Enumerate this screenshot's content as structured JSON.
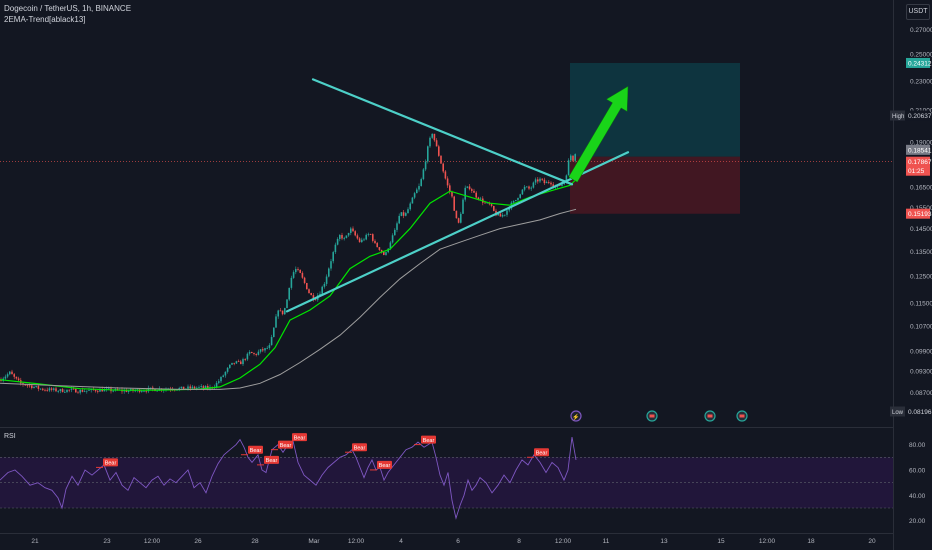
{
  "header": {
    "symbol_line": "Dogecoin / TetherUS, 1h, BINANCE",
    "indicator_line": "2EMA-Trend[ablack13]"
  },
  "currency_button": "USDT",
  "rsi_label": "RSI",
  "colors": {
    "background": "#131722",
    "up": "#26a69a",
    "down": "#ef5350",
    "ema_fast": "#00e600",
    "ema_slow": "#9e9e9e",
    "trendline": "#4dd0c8",
    "arrow": "#19d419",
    "target_zone": "#0e3a44",
    "stop_zone": "#4a1722",
    "rsi_line": "#7e57c2",
    "rsi_band": "#21163a",
    "bear_tag": "#e53935"
  },
  "chart_data": [
    {
      "type": "candlestick",
      "title": "Dogecoin / TetherUS, 1h, BINANCE",
      "price_axis": {
        "scale": "log",
        "ticks": [
          "0.27000",
          "0.25000",
          "0.23000",
          "0.21000",
          "0.19000",
          "0.16500",
          "0.15500",
          "0.14500",
          "0.13500",
          "0.12500",
          "0.11500",
          "0.10700",
          "0.09900",
          "0.09300",
          "0.08700"
        ]
      },
      "time_axis": {
        "ticks": [
          "21",
          "23",
          "12:00",
          "26",
          "28",
          "Mar",
          "12:00",
          "4",
          "6",
          "8",
          "12:00",
          "11",
          "13",
          "15",
          "12:00",
          "18",
          "20"
        ]
      },
      "price_labels": [
        {
          "name": "target",
          "value": "0.24312"
        },
        {
          "name": "High",
          "value": "0.20637"
        },
        {
          "name": "last",
          "value": "0.18541"
        },
        {
          "name": "current",
          "value": "0.17867"
        },
        {
          "name": "countdown",
          "value": "01:25"
        },
        {
          "name": "stop",
          "value": "0.15193"
        },
        {
          "name": "Low",
          "value": "0.08196"
        }
      ],
      "close_path": [
        [
          0,
          0.0905
        ],
        [
          5,
          0.0915
        ],
        [
          10,
          0.0925
        ],
        [
          14,
          0.0912
        ],
        [
          20,
          0.0895
        ],
        [
          30,
          0.0888
        ],
        [
          40,
          0.088
        ],
        [
          50,
          0.0877
        ],
        [
          60,
          0.0875
        ],
        [
          70,
          0.0876
        ],
        [
          80,
          0.0874
        ],
        [
          90,
          0.0875
        ],
        [
          100,
          0.0877
        ],
        [
          110,
          0.0876
        ],
        [
          120,
          0.0875
        ],
        [
          130,
          0.0874
        ],
        [
          140,
          0.0876
        ],
        [
          150,
          0.0878
        ],
        [
          160,
          0.0879
        ],
        [
          170,
          0.0881
        ],
        [
          180,
          0.088
        ],
        [
          190,
          0.0882
        ],
        [
          200,
          0.0883
        ],
        [
          210,
          0.0882
        ],
        [
          215,
          0.089
        ],
        [
          220,
          0.0905
        ],
        [
          225,
          0.0925
        ],
        [
          230,
          0.0945
        ],
        [
          235,
          0.0955
        ],
        [
          240,
          0.0952
        ],
        [
          245,
          0.0968
        ],
        [
          250,
          0.0985
        ],
        [
          255,
          0.0978
        ],
        [
          260,
          0.099
        ],
        [
          265,
          0.0995
        ],
        [
          270,
          0.1005
        ],
        [
          275,
          0.108
        ],
        [
          278,
          0.113
        ],
        [
          282,
          0.111
        ],
        [
          286,
          0.114
        ],
        [
          290,
          0.123
        ],
        [
          295,
          0.128
        ],
        [
          300,
          0.126
        ],
        [
          305,
          0.122
        ],
        [
          310,
          0.118
        ],
        [
          315,
          0.1165
        ],
        [
          320,
          0.119
        ],
        [
          325,
          0.123
        ],
        [
          330,
          0.13
        ],
        [
          335,
          0.137
        ],
        [
          340,
          0.142
        ],
        [
          345,
          0.14
        ],
        [
          350,
          0.145
        ],
        [
          355,
          0.142
        ],
        [
          360,
          0.139
        ],
        [
          365,
          0.141
        ],
        [
          370,
          0.143
        ],
        [
          375,
          0.138
        ],
        [
          380,
          0.136
        ],
        [
          385,
          0.133
        ],
        [
          390,
          0.139
        ],
        [
          395,
          0.144
        ],
        [
          400,
          0.152
        ],
        [
          405,
          0.151
        ],
        [
          410,
          0.156
        ],
        [
          415,
          0.162
        ],
        [
          420,
          0.166
        ],
        [
          425,
          0.178
        ],
        [
          428,
          0.187
        ],
        [
          432,
          0.196
        ],
        [
          436,
          0.188
        ],
        [
          440,
          0.18
        ],
        [
          444,
          0.172
        ],
        [
          448,
          0.165
        ],
        [
          452,
          0.16
        ],
        [
          455,
          0.152
        ],
        [
          458,
          0.146
        ],
        [
          461,
          0.153
        ],
        [
          465,
          0.164
        ],
        [
          470,
          0.165
        ],
        [
          475,
          0.161
        ],
        [
          480,
          0.159
        ],
        [
          485,
          0.157
        ],
        [
          490,
          0.156
        ],
        [
          495,
          0.152
        ],
        [
          500,
          0.1505
        ],
        [
          505,
          0.152
        ],
        [
          510,
          0.156
        ],
        [
          515,
          0.158
        ],
        [
          520,
          0.162
        ],
        [
          525,
          0.165
        ],
        [
          530,
          0.164
        ],
        [
          535,
          0.168
        ],
        [
          540,
          0.169
        ],
        [
          545,
          0.167
        ],
        [
          550,
          0.168
        ],
        [
          555,
          0.165
        ],
        [
          560,
          0.166
        ],
        [
          565,
          0.168
        ],
        [
          570,
          0.183
        ],
        [
          573,
          0.18
        ],
        [
          576,
          0.1854
        ]
      ],
      "series": [
        {
          "name": "EMA fast",
          "color_key": "ema_fast",
          "values": [
            [
              0,
              0.0905
            ],
            [
              40,
              0.0893
            ],
            [
              80,
              0.088
            ],
            [
              120,
              0.0876
            ],
            [
              160,
              0.0876
            ],
            [
              200,
              0.0879
            ],
            [
              220,
              0.0885
            ],
            [
              240,
              0.091
            ],
            [
              260,
              0.095
            ],
            [
              275,
              0.1
            ],
            [
              290,
              0.109
            ],
            [
              310,
              0.1125
            ],
            [
              330,
              0.1175
            ],
            [
              350,
              0.128
            ],
            [
              370,
              0.133
            ],
            [
              390,
              0.136
            ],
            [
              410,
              0.145
            ],
            [
              430,
              0.157
            ],
            [
              450,
              0.163
            ],
            [
              470,
              0.16
            ],
            [
              490,
              0.157
            ],
            [
              510,
              0.156
            ],
            [
              530,
              0.16
            ],
            [
              550,
              0.163
            ],
            [
              570,
              0.166
            ],
            [
              576,
              0.169
            ]
          ]
        },
        {
          "name": "EMA slow",
          "color_key": "ema_slow",
          "values": [
            [
              0,
              0.0895
            ],
            [
              60,
              0.0888
            ],
            [
              120,
              0.0882
            ],
            [
              180,
              0.0878
            ],
            [
              220,
              0.0878
            ],
            [
              240,
              0.0882
            ],
            [
              260,
              0.0895
            ],
            [
              280,
              0.092
            ],
            [
              300,
              0.0955
            ],
            [
              320,
              0.0995
            ],
            [
              340,
              0.104
            ],
            [
              360,
              0.11
            ],
            [
              380,
              0.117
            ],
            [
              400,
              0.124
            ],
            [
              420,
              0.13
            ],
            [
              440,
              0.136
            ],
            [
              460,
              0.139
            ],
            [
              480,
              0.142
            ],
            [
              500,
              0.145
            ],
            [
              520,
              0.147
            ],
            [
              540,
              0.149
            ],
            [
              560,
              0.152
            ],
            [
              576,
              0.154
            ]
          ]
        }
      ],
      "annotations": {
        "descending_trendline": [
          [
            313,
            0.231
          ],
          [
            572,
            0.1665
          ]
        ],
        "ascending_trendline": [
          [
            287,
            0.112
          ],
          [
            628,
            0.184
          ]
        ],
        "arrow": [
          [
            573,
            0.169
          ],
          [
            628,
            0.226
          ]
        ],
        "target_zone": {
          "x_from": 570,
          "x_to": 740,
          "price_from": 0.1815,
          "price_to": 0.2431
        },
        "stop_zone": {
          "x_from": 570,
          "x_to": 740,
          "price_from": 0.1519,
          "price_to": 0.1815
        }
      }
    },
    {
      "type": "line",
      "title": "RSI",
      "y_ticks": [
        "80.00",
        "60.00",
        "40.00",
        "20.00"
      ],
      "ylim": [
        15,
        90
      ],
      "bands": [
        30,
        50,
        70
      ],
      "values": [
        [
          0,
          52
        ],
        [
          8,
          58
        ],
        [
          15,
          60
        ],
        [
          22,
          55
        ],
        [
          30,
          48
        ],
        [
          38,
          50
        ],
        [
          45,
          46
        ],
        [
          52,
          44
        ],
        [
          58,
          38
        ],
        [
          62,
          30
        ],
        [
          66,
          45
        ],
        [
          72,
          55
        ],
        [
          78,
          48
        ],
        [
          85,
          60
        ],
        [
          92,
          56
        ],
        [
          98,
          60
        ],
        [
          104,
          64
        ],
        [
          110,
          52
        ],
        [
          116,
          58
        ],
        [
          122,
          48
        ],
        [
          128,
          44
        ],
        [
          134,
          54
        ],
        [
          140,
          50
        ],
        [
          146,
          46
        ],
        [
          152,
          52
        ],
        [
          158,
          55
        ],
        [
          164,
          48
        ],
        [
          170,
          53
        ],
        [
          176,
          50
        ],
        [
          182,
          55
        ],
        [
          188,
          60
        ],
        [
          194,
          46
        ],
        [
          200,
          50
        ],
        [
          206,
          42
        ],
        [
          212,
          55
        ],
        [
          218,
          65
        ],
        [
          224,
          72
        ],
        [
          230,
          76
        ],
        [
          236,
          80
        ],
        [
          240,
          84
        ],
        [
          244,
          78
        ],
        [
          248,
          70
        ],
        [
          252,
          66
        ],
        [
          258,
          72
        ],
        [
          262,
          60
        ],
        [
          266,
          58
        ],
        [
          272,
          76
        ],
        [
          278,
          80
        ],
        [
          283,
          74
        ],
        [
          288,
          80
        ],
        [
          293,
          83
        ],
        [
          298,
          66
        ],
        [
          304,
          56
        ],
        [
          310,
          52
        ],
        [
          316,
          48
        ],
        [
          322,
          56
        ],
        [
          328,
          62
        ],
        [
          334,
          66
        ],
        [
          340,
          70
        ],
        [
          346,
          72
        ],
        [
          352,
          76
        ],
        [
          356,
          70
        ],
        [
          360,
          62
        ],
        [
          364,
          54
        ],
        [
          368,
          62
        ],
        [
          372,
          68
        ],
        [
          376,
          60
        ],
        [
          380,
          62
        ],
        [
          384,
          52
        ],
        [
          388,
          58
        ],
        [
          394,
          64
        ],
        [
          400,
          70
        ],
        [
          406,
          76
        ],
        [
          412,
          78
        ],
        [
          418,
          82
        ],
        [
          424,
          78
        ],
        [
          428,
          80
        ],
        [
          432,
          82
        ],
        [
          436,
          70
        ],
        [
          440,
          56
        ],
        [
          444,
          48
        ],
        [
          448,
          58
        ],
        [
          452,
          36
        ],
        [
          456,
          22
        ],
        [
          460,
          32
        ],
        [
          464,
          40
        ],
        [
          468,
          52
        ],
        [
          472,
          44
        ],
        [
          476,
          48
        ],
        [
          480,
          54
        ],
        [
          486,
          50
        ],
        [
          492,
          42
        ],
        [
          498,
          48
        ],
        [
          504,
          56
        ],
        [
          510,
          50
        ],
        [
          516,
          60
        ],
        [
          522,
          68
        ],
        [
          528,
          64
        ],
        [
          534,
          72
        ],
        [
          540,
          66
        ],
        [
          546,
          58
        ],
        [
          552,
          66
        ],
        [
          558,
          62
        ],
        [
          564,
          52
        ],
        [
          568,
          60
        ],
        [
          572,
          86
        ],
        [
          576,
          68
        ]
      ],
      "bear_labels": [
        {
          "text": "Bear",
          "x": 104,
          "rsi": 66
        },
        {
          "text": "Bear",
          "x": 249,
          "rsi": 76
        },
        {
          "text": "Bear",
          "x": 265,
          "rsi": 68
        },
        {
          "text": "Bear",
          "x": 279,
          "rsi": 80
        },
        {
          "text": "Bear",
          "x": 293,
          "rsi": 86
        },
        {
          "text": "Bear",
          "x": 353,
          "rsi": 78
        },
        {
          "text": "Bear",
          "x": 378,
          "rsi": 64
        },
        {
          "text": "Bear",
          "x": 422,
          "rsi": 84
        },
        {
          "text": "Bear",
          "x": 535,
          "rsi": 74
        }
      ]
    }
  ],
  "event_markers": [
    "flash-event-icon",
    "earnings-flag-icon",
    "earnings-flag-icon",
    "earnings-flag-icon"
  ]
}
